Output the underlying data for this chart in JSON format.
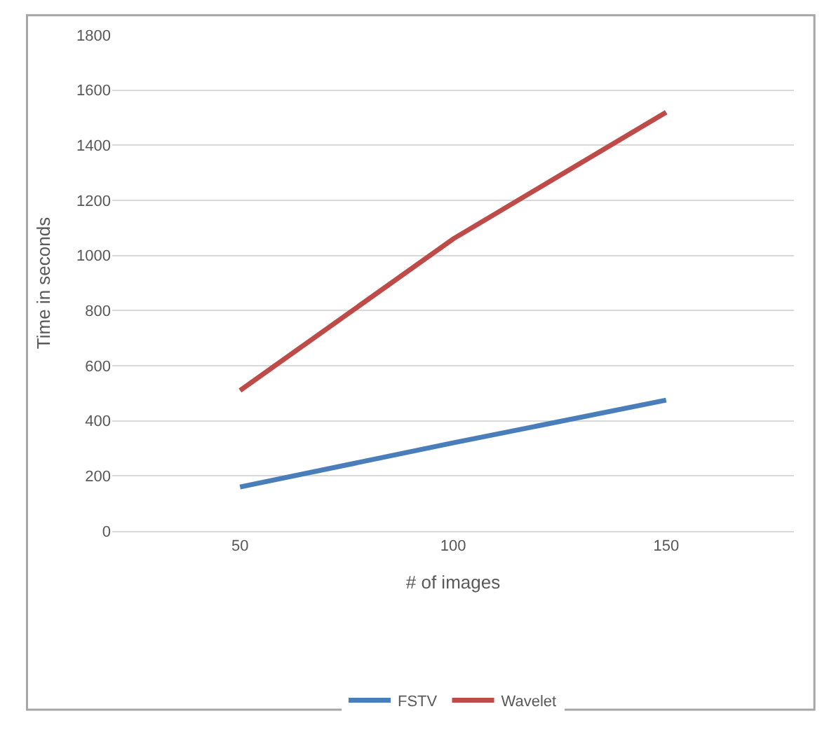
{
  "chart_data": {
    "type": "line",
    "xlabel": "# of images",
    "ylabel": "Time in seconds",
    "categories": [
      "50",
      "100",
      "150"
    ],
    "series": [
      {
        "name": "FSTV",
        "color": "#4a7ebb",
        "values": [
          160,
          320,
          475
        ]
      },
      {
        "name": "Wavelet",
        "color": "#be4b48",
        "values": [
          510,
          1060,
          1520
        ]
      }
    ],
    "ylim": [
      0,
      1800
    ],
    "yticks": [
      0,
      200,
      400,
      600,
      800,
      1000,
      1200,
      1400,
      1600,
      1800
    ],
    "grid": "y",
    "legend": "bottom",
    "marker": "none",
    "line_style": "solid"
  }
}
